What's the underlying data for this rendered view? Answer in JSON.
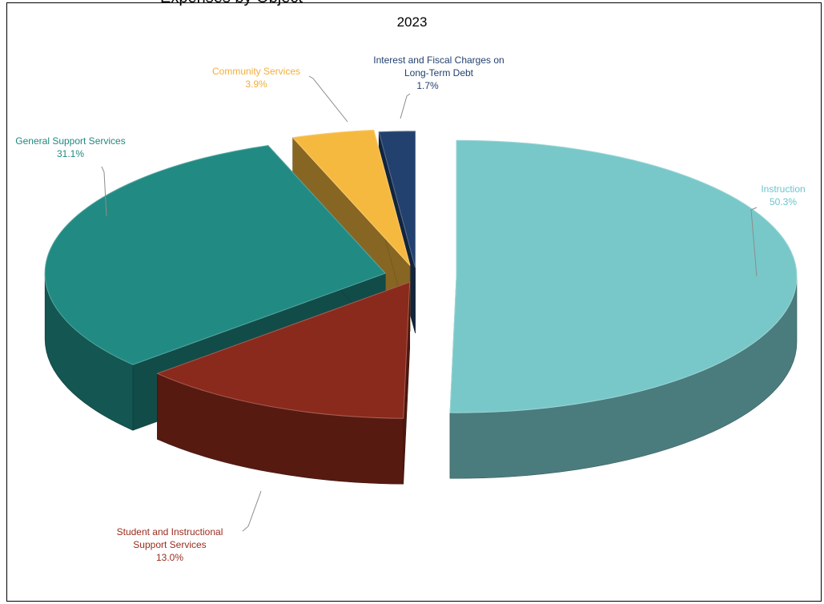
{
  "chart_data": {
    "type": "pie",
    "title": "2023",
    "cropped_heading": "Expenses by Object",
    "slices": [
      {
        "label": "Instruction",
        "value": 50.3,
        "value_label": "50.3%",
        "color": "#79c8c9",
        "label_color": "#6cc5cb"
      },
      {
        "label": "Student and Instructional Support Services",
        "value": 13.0,
        "value_label": "13.0%",
        "color": "#8a2a1c",
        "label_color": "#9b2b1d"
      },
      {
        "label": "General Support Services",
        "value": 31.1,
        "value_label": "31.1%",
        "color": "#218a83",
        "label_color": "#1f8a80"
      },
      {
        "label": "Community Services",
        "value": 3.9,
        "value_label": "3.9%",
        "color": "#f6b940",
        "label_color": "#f3ae3a"
      },
      {
        "label": "Interest and Fiscal Charges on Long-Term Debt",
        "value": 1.7,
        "value_label": "1.7%",
        "color": "#23416e",
        "label_color": "#23416e"
      }
    ],
    "legend": "none",
    "style": "3d-exploded"
  }
}
